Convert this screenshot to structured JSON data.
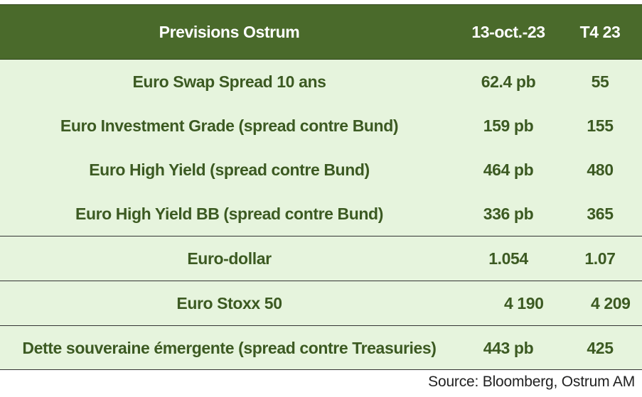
{
  "table": {
    "header": {
      "label": "Previsions Ostrum",
      "date": "13-oct.-23",
      "q4": "T4 23"
    },
    "rows": [
      {
        "label": "Euro Swap Spread 10 ans",
        "date": "62.4 pb",
        "q4": "55"
      },
      {
        "label": "Euro Investment Grade (spread contre Bund)",
        "date": "159 pb",
        "q4": "155"
      },
      {
        "label": "Euro High Yield (spread contre Bund)",
        "date": "464 pb",
        "q4": "480"
      },
      {
        "label": "Euro High Yield BB (spread contre Bund)",
        "date": "336 pb",
        "q4": "365"
      },
      {
        "label": "Euro-dollar",
        "date": "1.054",
        "q4": "1.07"
      },
      {
        "label": "Euro Stoxx 50",
        "date": "4 190",
        "q4": "4 209"
      },
      {
        "label": "Dette souveraine émergente (spread contre Treasuries)",
        "date": "443 pb",
        "q4": "425"
      }
    ]
  },
  "source": "Source: Bloomberg, Ostrum AM",
  "colors": {
    "header_bg": "#4a6a2b",
    "body_bg": "#e6f4dd",
    "text": "#3c5a22"
  }
}
